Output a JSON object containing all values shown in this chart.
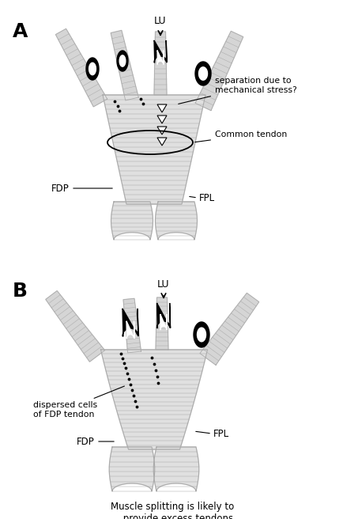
{
  "bg_color": "#ffffff",
  "line_color": "#000000",
  "label_A": "A",
  "label_B": "B",
  "label_LU": "LU",
  "label_FDP_A": "FDP",
  "label_FPL_A": "FPL",
  "label_common": "Common tendon",
  "label_separation": "separation due to\nmechanical stress?",
  "label_dispersed": "dispersed cells\nof FDP tendon",
  "label_FDP_B": "FDP",
  "label_FPL_B": "FPL",
  "label_caption": "Muscle splitting is likely to\n     provide excess tendons.",
  "figsize": [
    4.34,
    6.56
  ],
  "dpi": 100
}
